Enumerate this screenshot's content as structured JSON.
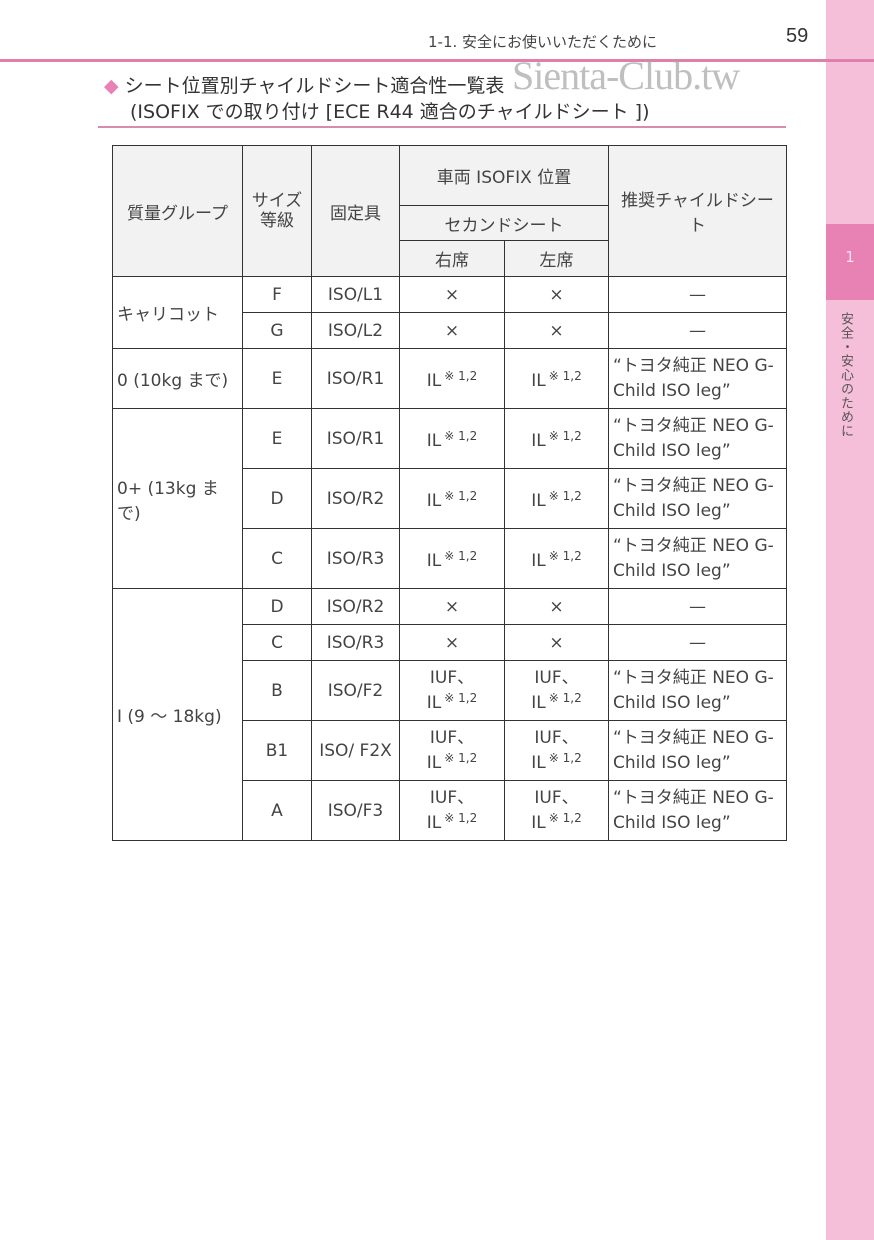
{
  "header": {
    "section": "1-1. 安全にお使いいただくために",
    "page_number": "59",
    "watermark": "Sienta-Club.tw"
  },
  "sidebar": {
    "tab_number": "1",
    "chapter": "安全・安心のために"
  },
  "title": {
    "line1": "シート位置別チャイルドシート適合性一覧表",
    "line2": "(ISOFIX での取り付け [ECE R44 適合のチャイルドシート ])"
  },
  "colors": {
    "accent": "#e982b4",
    "sidebar": "#f6bfd9"
  },
  "table": {
    "headers": {
      "group": "質量グループ",
      "size": "サイズ等級",
      "fixture": "固定具",
      "vehicle_position": "車両 ISOFIX 位置",
      "second_seat": "セカンドシート",
      "right": "右席",
      "left": "左席",
      "recommended": "推奨チャイルドシート"
    },
    "groups": [
      {
        "label": "キャリコット",
        "rows": [
          {
            "size": "F",
            "fixture": "ISO/L1",
            "right": {
              "text": "×"
            },
            "left": {
              "text": "×"
            },
            "rec": "—"
          },
          {
            "size": "G",
            "fixture": "ISO/L2",
            "right": {
              "text": "×"
            },
            "left": {
              "text": "×"
            },
            "rec": "—"
          }
        ]
      },
      {
        "label": "0 (10kg まで)",
        "rows": [
          {
            "size": "E",
            "fixture": "ISO/R1",
            "right": {
              "text": "IL",
              "sup": "※ 1,2"
            },
            "left": {
              "text": "IL",
              "sup": "※ 1,2"
            },
            "rec": "“トヨタ純正 NEO G-Child ISO leg”"
          }
        ]
      },
      {
        "label": "0+ (13kg まで)",
        "rows": [
          {
            "size": "E",
            "fixture": "ISO/R1",
            "right": {
              "text": "IL",
              "sup": "※ 1,2"
            },
            "left": {
              "text": "IL",
              "sup": "※ 1,2"
            },
            "rec": "“トヨタ純正 NEO G-Child ISO leg”"
          },
          {
            "size": "D",
            "fixture": "ISO/R2",
            "right": {
              "text": "IL",
              "sup": "※ 1,2"
            },
            "left": {
              "text": "IL",
              "sup": "※ 1,2"
            },
            "rec": "“トヨタ純正 NEO G-Child ISO leg”"
          },
          {
            "size": "C",
            "fixture": "ISO/R3",
            "right": {
              "text": "IL",
              "sup": "※ 1,2"
            },
            "left": {
              "text": "IL",
              "sup": "※ 1,2"
            },
            "rec": "“トヨタ純正 NEO G-Child ISO leg”"
          }
        ]
      },
      {
        "label": "I (9 〜 18kg)",
        "rows": [
          {
            "size": "D",
            "fixture": "ISO/R2",
            "right": {
              "text": "×"
            },
            "left": {
              "text": "×"
            },
            "rec": "—"
          },
          {
            "size": "C",
            "fixture": "ISO/R3",
            "right": {
              "text": "×"
            },
            "left": {
              "text": "×"
            },
            "rec": "—"
          },
          {
            "size": "B",
            "fixture": "ISO/F2",
            "right": {
              "pre": "IUF、",
              "text": "IL",
              "sup": "※ 1,2"
            },
            "left": {
              "pre": "IUF、",
              "text": "IL",
              "sup": "※ 1,2"
            },
            "rec": "“トヨタ純正 NEO G-Child ISO leg”"
          },
          {
            "size": "B1",
            "fixture": "ISO/ F2X",
            "right": {
              "pre": "IUF、",
              "text": "IL",
              "sup": "※ 1,2"
            },
            "left": {
              "pre": "IUF、",
              "text": "IL",
              "sup": "※ 1,2"
            },
            "rec": "“トヨタ純正 NEO G-Child ISO leg”"
          },
          {
            "size": "A",
            "fixture": "ISO/F3",
            "right": {
              "pre": "IUF、",
              "text": "IL",
              "sup": "※ 1,2"
            },
            "left": {
              "pre": "IUF、",
              "text": "IL",
              "sup": "※ 1,2"
            },
            "rec": "“トヨタ純正 NEO G-Child ISO leg”"
          }
        ]
      }
    ]
  }
}
